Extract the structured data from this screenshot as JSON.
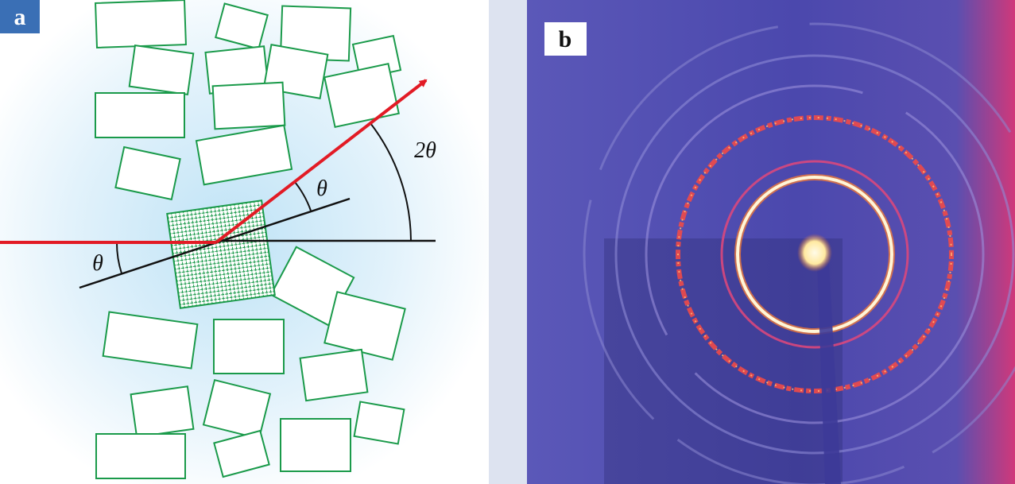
{
  "panels": [
    {
      "label": "a",
      "annotations": {
        "incident_angle": "θ",
        "reflected_angle": "θ",
        "scattering_angle": "2θ"
      }
    },
    {
      "label": "b"
    }
  ]
}
